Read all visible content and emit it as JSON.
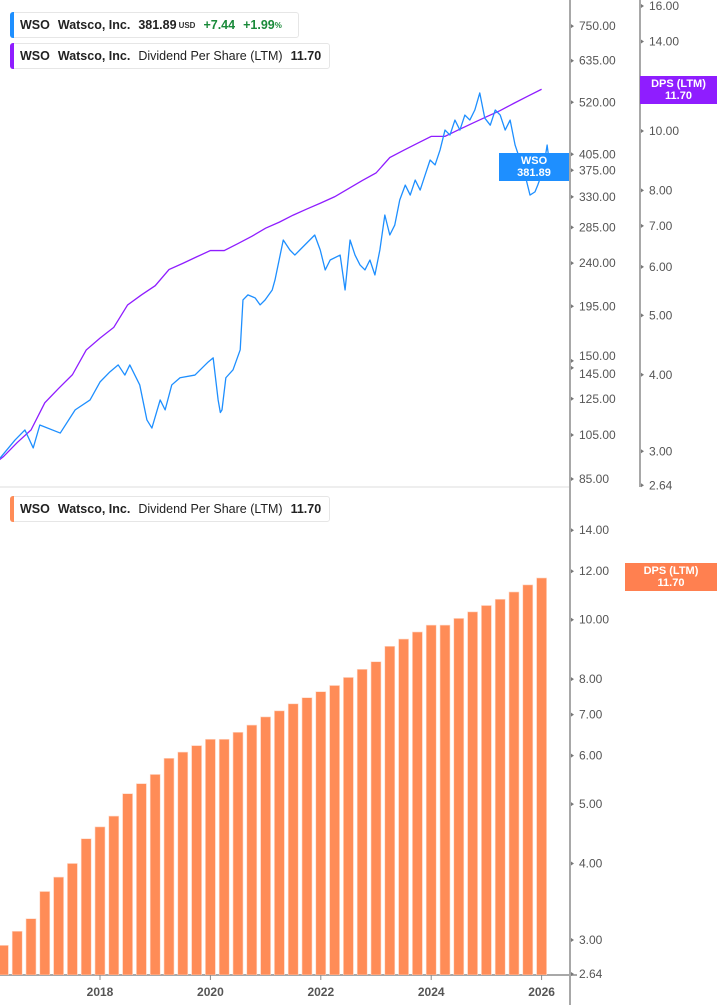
{
  "colors": {
    "price": "#1e8fff",
    "dps_line": "#8f1dff",
    "dps_bars": "#ff8c57",
    "axis": "#a8a8a8",
    "tick_text": "#555555",
    "positive": "#1a8a3a"
  },
  "legend_price": {
    "ticker": "WSO",
    "name": "Watsco, Inc.",
    "price": "381.89",
    "currency": "USD",
    "change": "+7.44",
    "change_pct": "+1.99",
    "pct_sign": "%"
  },
  "legend_dps_top": {
    "ticker": "WSO",
    "name": "Watsco, Inc.",
    "metric": "Dividend Per Share (LTM)",
    "value": "11.70"
  },
  "legend_dps_bottom": {
    "ticker": "WSO",
    "name": "Watsco, Inc.",
    "metric": "Dividend Per Share (LTM)",
    "value": "11.70"
  },
  "tags": {
    "price": {
      "label": "WSO",
      "value": "381.89"
    },
    "dps_top": {
      "label": "DPS (LTM)",
      "value": "11.70"
    },
    "dps_bottom": {
      "label": "DPS (LTM)",
      "value": "11.70"
    }
  },
  "chart_data": [
    {
      "type": "line",
      "scale": "log",
      "price_axis": {
        "ticks": [
          "750.00",
          "635.00",
          "520.00",
          "405.00",
          "375.00",
          "330.00",
          "285.00",
          "240.00",
          "195.00",
          "150.00",
          "145.00",
          "125.00",
          "105.00",
          "85.00"
        ]
      },
      "dps_axis": {
        "ticks": [
          "16.00",
          "14.00",
          "10.00",
          "8.00",
          "7.00",
          "6.00",
          "5.00",
          "4.00",
          "3.00",
          "2.64"
        ]
      },
      "series": [
        {
          "key": "price",
          "points": [
            [
              2016.19,
              94
            ],
            [
              2016.46,
              102.5
            ],
            [
              2016.64,
              107.6
            ],
            [
              2016.79,
              98.7
            ],
            [
              2016.91,
              110.2
            ],
            [
              2017.28,
              106
            ],
            [
              2017.55,
              118.5
            ],
            [
              2017.82,
              124.3
            ],
            [
              2018.0,
              135.5
            ],
            [
              2018.18,
              142.3
            ],
            [
              2018.33,
              147.1
            ],
            [
              2018.45,
              140.1
            ],
            [
              2018.54,
              147.1
            ],
            [
              2018.72,
              133.6
            ],
            [
              2018.85,
              112.9
            ],
            [
              2018.94,
              108.6
            ],
            [
              2019.09,
              124.3
            ],
            [
              2019.18,
              118.5
            ],
            [
              2019.3,
              133.6
            ],
            [
              2019.45,
              138.3
            ],
            [
              2019.72,
              140.1
            ],
            [
              2019.96,
              149.2
            ],
            [
              2020.05,
              152.2
            ],
            [
              2020.14,
              124.3
            ],
            [
              2020.18,
              117
            ],
            [
              2020.21,
              118.5
            ],
            [
              2020.28,
              138.3
            ],
            [
              2020.41,
              143.7
            ],
            [
              2020.54,
              158.2
            ],
            [
              2020.59,
              201
            ],
            [
              2020.68,
              206
            ],
            [
              2020.81,
              203
            ],
            [
              2020.9,
              196.3
            ],
            [
              2020.99,
              201
            ],
            [
              2021.12,
              210.9
            ],
            [
              2021.17,
              221.3
            ],
            [
              2021.32,
              268.2
            ],
            [
              2021.44,
              255.6
            ],
            [
              2021.53,
              249.5
            ],
            [
              2021.62,
              255.6
            ],
            [
              2021.8,
              268.2
            ],
            [
              2021.89,
              274.7
            ],
            [
              2021.99,
              255.6
            ],
            [
              2022.08,
              232.2
            ],
            [
              2022.17,
              243.6
            ],
            [
              2022.35,
              249.5
            ],
            [
              2022.44,
              210.9
            ],
            [
              2022.53,
              268.2
            ],
            [
              2022.62,
              249.5
            ],
            [
              2022.71,
              237.9
            ],
            [
              2022.8,
              232.2
            ],
            [
              2022.89,
              243.6
            ],
            [
              2022.98,
              226.7
            ],
            [
              2023.07,
              255.6
            ],
            [
              2023.16,
              302.4
            ],
            [
              2023.25,
              274.7
            ],
            [
              2023.34,
              288.2
            ],
            [
              2023.43,
              325
            ],
            [
              2023.53,
              349.2
            ],
            [
              2023.62,
              332.9
            ],
            [
              2023.71,
              357.8
            ],
            [
              2023.8,
              341
            ],
            [
              2023.89,
              366.6
            ],
            [
              2023.98,
              394
            ],
            [
              2024.07,
              384.7
            ],
            [
              2024.16,
              413.3
            ],
            [
              2024.25,
              455
            ],
            [
              2024.34,
              444.2
            ],
            [
              2024.43,
              477.3
            ],
            [
              2024.52,
              455
            ],
            [
              2024.61,
              489
            ],
            [
              2024.7,
              477.3
            ],
            [
              2024.79,
              501
            ],
            [
              2024.88,
              543.8
            ],
            [
              2024.97,
              482
            ],
            [
              2025.07,
              465.8
            ],
            [
              2025.16,
              501
            ],
            [
              2025.25,
              489
            ],
            [
              2025.34,
              455
            ],
            [
              2025.43,
              477.3
            ],
            [
              2025.52,
              423.3
            ],
            [
              2025.61,
              394
            ],
            [
              2025.7,
              366.6
            ],
            [
              2025.79,
              332.9
            ],
            [
              2025.88,
              338
            ],
            [
              2025.93,
              349.2
            ],
            [
              2026.03,
              375.6
            ],
            [
              2026.1,
              423.3
            ],
            [
              2026.15,
              381.89
            ]
          ]
        },
        {
          "key": "dps",
          "note_axis": "right"
        }
      ]
    },
    {
      "type": "bar",
      "scale": "log",
      "y_axis": {
        "ticks": [
          "14.00",
          "12.00",
          "10.00",
          "8.00",
          "7.00",
          "6.00",
          "5.00",
          "4.00",
          "3.00",
          "2.64"
        ]
      },
      "x_axis": {
        "ticks": [
          "2018",
          "2020",
          "2022",
          "2024",
          "2026"
        ]
      },
      "x_start": 2016.25,
      "x_step": 0.25,
      "values": [
        2.94,
        3.1,
        3.25,
        3.6,
        3.8,
        4.0,
        4.39,
        4.59,
        4.78,
        5.2,
        5.4,
        5.59,
        5.94,
        6.08,
        6.23,
        6.38,
        6.38,
        6.55,
        6.73,
        6.94,
        7.1,
        7.29,
        7.46,
        7.63,
        7.81,
        8.05,
        8.3,
        8.54,
        9.05,
        9.3,
        9.55,
        9.8,
        9.8,
        10.05,
        10.3,
        10.55,
        10.8,
        11.1,
        11.4,
        11.7
      ]
    }
  ]
}
